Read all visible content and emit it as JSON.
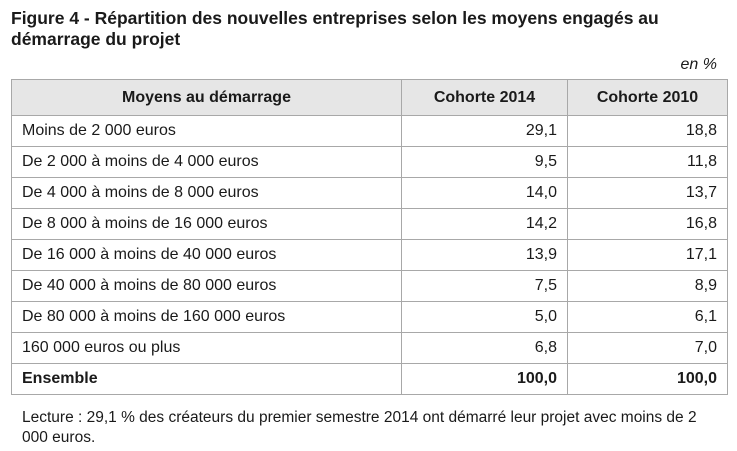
{
  "figure": {
    "title": "Figure 4 - Répartition des nouvelles entreprises selon les moyens engagés au démarrage du projet",
    "unit": "en %",
    "note": "Lecture : 29,1 % des créateurs du premier semestre 2014 ont démarré leur projet avec moins de 2 000 euros."
  },
  "table": {
    "headers": [
      "Moyens au démarrage",
      "Cohorte 2014",
      "Cohorte 2010"
    ],
    "rows": [
      {
        "label": "Moins de 2 000 euros",
        "c2014": "29,1",
        "c2010": "18,8"
      },
      {
        "label": "De 2 000 à moins de 4 000 euros",
        "c2014": "9,5",
        "c2010": "11,8"
      },
      {
        "label": "De 4 000 à moins de 8 000 euros",
        "c2014": "14,0",
        "c2010": "13,7"
      },
      {
        "label": "De 8 000 à moins de 16 000 euros",
        "c2014": "14,2",
        "c2010": "16,8"
      },
      {
        "label": "De 16 000 à moins de 40 000 euros",
        "c2014": "13,9",
        "c2010": "17,1"
      },
      {
        "label": "De 40 000 à moins de 80 000 euros",
        "c2014": "7,5",
        "c2010": "8,9"
      },
      {
        "label": "De 80 000 à moins de 160 000 euros",
        "c2014": "5,0",
        "c2010": "6,1"
      },
      {
        "label": "160 000 euros ou plus",
        "c2014": "6,8",
        "c2010": "7,0"
      }
    ],
    "total": {
      "label": "Ensemble",
      "c2014": "100,0",
      "c2010": "100,0"
    }
  }
}
